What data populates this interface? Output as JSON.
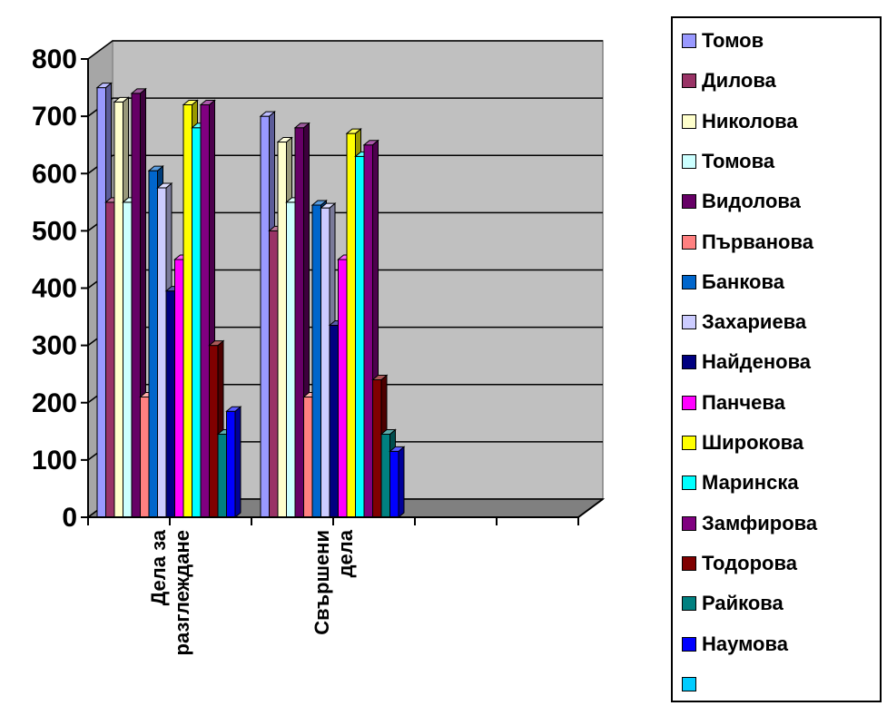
{
  "chart_data": {
    "type": "bar",
    "style": "3d-clustered-column",
    "categories": [
      "Дела за разглеждане",
      "Свършени дела",
      ""
    ],
    "category_lines": [
      [
        "Дела за",
        "разглеждане"
      ],
      [
        "Свършени",
        "дела"
      ],
      []
    ],
    "ylim": [
      0,
      800
    ],
    "yticks": [
      "0",
      "100",
      "200",
      "300",
      "400",
      "500",
      "600",
      "700",
      "800"
    ],
    "grid": true,
    "legend_position": "right",
    "series": [
      {
        "name": "Томов",
        "color": "#9999ff",
        "values": [
          750,
          700,
          null
        ]
      },
      {
        "name": "Дилова",
        "color": "#993366",
        "values": [
          550,
          500,
          null
        ]
      },
      {
        "name": "Николова",
        "color": "#ffffcc",
        "values": [
          725,
          655,
          null
        ]
      },
      {
        "name": "Томова",
        "color": "#ccffff",
        "values": [
          550,
          550,
          null
        ]
      },
      {
        "name": "Видолова",
        "color": "#660066",
        "values": [
          740,
          680,
          null
        ]
      },
      {
        "name": "Първанова",
        "color": "#ff8080",
        "values": [
          210,
          210,
          null
        ]
      },
      {
        "name": "Банкова",
        "color": "#0066cc",
        "values": [
          605,
          545,
          null
        ]
      },
      {
        "name": "Захариева",
        "color": "#ccccff",
        "values": [
          575,
          540,
          null
        ]
      },
      {
        "name": "Найденова",
        "color": "#000080",
        "values": [
          395,
          335,
          null
        ]
      },
      {
        "name": "Панчева",
        "color": "#ff00ff",
        "values": [
          450,
          450,
          null
        ]
      },
      {
        "name": "Широкова",
        "color": "#ffff00",
        "values": [
          720,
          670,
          null
        ]
      },
      {
        "name": "Маринска",
        "color": "#00ffff",
        "values": [
          680,
          630,
          null
        ]
      },
      {
        "name": "Замфирова",
        "color": "#800080",
        "values": [
          720,
          650,
          null
        ]
      },
      {
        "name": "Тодорова",
        "color": "#800000",
        "values": [
          300,
          240,
          null
        ]
      },
      {
        "name": "Райкова",
        "color": "#008080",
        "values": [
          145,
          145,
          null
        ]
      },
      {
        "name": "Наумова",
        "color": "#0000ff",
        "values": [
          185,
          115,
          null
        ]
      },
      {
        "name": "",
        "color": "#00ccff",
        "values": [
          null,
          null,
          null
        ]
      }
    ]
  }
}
